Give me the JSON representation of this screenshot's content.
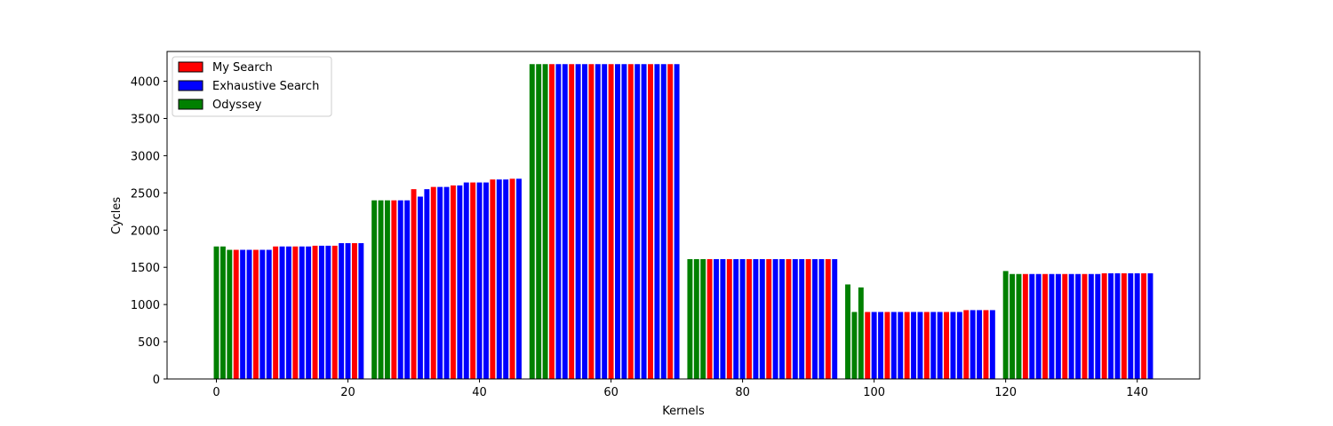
{
  "chart_data": {
    "type": "bar",
    "title": "",
    "xlabel": "Kernels",
    "ylabel": "Cycles",
    "xlim": [
      -7.5,
      149.5
    ],
    "ylim": [
      0,
      4400
    ],
    "xticks": [
      0,
      20,
      40,
      60,
      80,
      100,
      120,
      140
    ],
    "yticks": [
      0,
      500,
      1000,
      1500,
      2000,
      2500,
      3000,
      3500,
      4000
    ],
    "grid": false,
    "legend_position": "upper left",
    "series": [
      {
        "name": "My Search",
        "color": "#ff0000",
        "x": [
          3,
          6,
          9,
          12,
          15,
          18,
          21,
          27,
          30,
          33,
          36,
          39,
          42,
          45,
          51,
          54,
          57,
          60,
          63,
          66,
          69,
          75,
          78,
          81,
          84,
          87,
          90,
          93,
          99,
          102,
          105,
          108,
          111,
          114,
          117,
          123,
          126,
          129,
          132,
          135,
          138,
          141
        ],
        "values": [
          1735,
          1735,
          1780,
          1780,
          1790,
          1790,
          1825,
          2400,
          2550,
          2580,
          2600,
          2640,
          2680,
          2690,
          4230,
          4230,
          4230,
          4230,
          4230,
          4230,
          4230,
          1610,
          1610,
          1610,
          1610,
          1610,
          1610,
          1610,
          900,
          900,
          900,
          900,
          900,
          925,
          925,
          1410,
          1410,
          1410,
          1410,
          1420,
          1420,
          1420
        ]
      },
      {
        "name": "Exhaustive Search",
        "color": "#0000ff",
        "x": [
          4,
          5,
          7,
          8,
          10,
          11,
          13,
          14,
          16,
          17,
          19,
          20,
          22,
          28,
          29,
          31,
          32,
          34,
          35,
          37,
          38,
          40,
          41,
          43,
          44,
          46,
          52,
          53,
          55,
          56,
          58,
          59,
          61,
          62,
          64,
          65,
          67,
          68,
          70,
          76,
          77,
          79,
          80,
          82,
          83,
          85,
          86,
          88,
          89,
          91,
          92,
          94,
          100,
          101,
          103,
          104,
          106,
          107,
          109,
          110,
          112,
          113,
          115,
          116,
          118,
          124,
          125,
          127,
          128,
          130,
          131,
          133,
          134,
          136,
          137,
          139,
          140,
          142
        ],
        "values": [
          1735,
          1735,
          1735,
          1735,
          1780,
          1780,
          1780,
          1780,
          1790,
          1790,
          1825,
          1825,
          1825,
          2400,
          2400,
          2450,
          2550,
          2580,
          2580,
          2600,
          2640,
          2640,
          2640,
          2680,
          2680,
          2690,
          4230,
          4230,
          4230,
          4230,
          4230,
          4230,
          4230,
          4230,
          4230,
          4230,
          4230,
          4230,
          4230,
          1610,
          1610,
          1610,
          1610,
          1610,
          1610,
          1610,
          1610,
          1610,
          1610,
          1610,
          1610,
          1610,
          900,
          900,
          900,
          900,
          900,
          900,
          900,
          900,
          900,
          900,
          925,
          925,
          925,
          1410,
          1410,
          1410,
          1410,
          1410,
          1410,
          1410,
          1410,
          1420,
          1420,
          1420,
          1420,
          1420
        ]
      },
      {
        "name": "Odyssey",
        "color": "#008000",
        "x": [
          0,
          1,
          2,
          24,
          25,
          26,
          48,
          49,
          50,
          72,
          73,
          74,
          96,
          97,
          98,
          120,
          121,
          122
        ],
        "values": [
          1780,
          1780,
          1735,
          2400,
          2400,
          2400,
          4230,
          4230,
          4230,
          1610,
          1610,
          1610,
          1270,
          900,
          1230,
          1450,
          1410,
          1410
        ]
      }
    ]
  }
}
